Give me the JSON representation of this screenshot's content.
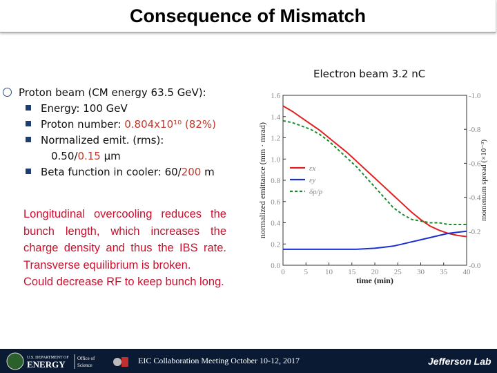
{
  "slide": {
    "title": "Consequence of Mismatch",
    "main_bullet": "Proton beam  (CM energy 63.5 GeV):",
    "subs": [
      {
        "pre": "Energy: 100 GeV",
        "hl": "",
        "post": ""
      },
      {
        "pre": "Proton number: ",
        "hl": "0.804x10¹⁰  (82%)",
        "post": ""
      },
      {
        "pre": "Normalized emit. (rms):",
        "hl": "",
        "post": ""
      },
      {
        "pre": "Beta function in cooler: 60/",
        "hl": "200",
        "post": " m"
      }
    ],
    "emit_cont_pre": "0.50/",
    "emit_cont_hl": "0.15",
    "emit_cont_post": " μm",
    "paragraph_1": "Longitudinal overcooling reduces the bunch length, which increases the charge density and thus the IBS rate. Transverse equilibrium is broken.",
    "paragraph_2": "Could decrease RF to keep bunch long.",
    "beam_label": "Electron beam  3.2 nC"
  },
  "footer": {
    "meeting": "EIC Collaboration Meeting October 10-12, 2017",
    "energy_small": "U.S. DEPARTMENT OF",
    "energy_word": "ENERGY",
    "office": "Office of",
    "science": "Science",
    "jlab": "Jefferson Lab"
  },
  "colors": {
    "accent_red": "#c8102e",
    "navy": "#0b1a33",
    "ex": "#e02020",
    "ey": "#1a2fd0",
    "dp": "#1a8a2a"
  },
  "chart_data": {
    "type": "line",
    "xlabel": "time (min)",
    "ylabel": "normalized emittance (mm · mrad)",
    "y2label": "momentum spread (×10⁻³)",
    "xlim": [
      0,
      40
    ],
    "ylim": [
      0,
      1.6
    ],
    "y2lim": [
      0,
      1.0
    ],
    "xticks": [
      "0",
      "5",
      "10",
      "15",
      "20",
      "25",
      "30",
      "35",
      "40"
    ],
    "yticks": [
      "0.0",
      "0.2",
      "0.4",
      "0.6",
      "0.8",
      "1.0",
      "1.2",
      "1.4",
      "1.6"
    ],
    "y2ticks": [
      "0.0",
      "0.2",
      "0.4",
      "0.6",
      "0.8",
      "1.0"
    ],
    "legend": [
      "εx",
      "εy",
      "δp/p"
    ],
    "legend_position": "center-left",
    "series": [
      {
        "name": "εx",
        "axis": "left",
        "x": [
          0,
          2,
          4,
          6,
          8,
          10,
          12,
          14,
          16,
          18,
          20,
          22,
          24,
          26,
          28,
          30,
          32,
          34,
          36,
          38,
          40
        ],
        "y": [
          1.5,
          1.45,
          1.39,
          1.33,
          1.27,
          1.2,
          1.13,
          1.06,
          0.98,
          0.9,
          0.82,
          0.74,
          0.66,
          0.58,
          0.5,
          0.43,
          0.37,
          0.33,
          0.3,
          0.28,
          0.27
        ]
      },
      {
        "name": "εy",
        "axis": "left",
        "x": [
          0,
          4,
          8,
          12,
          16,
          20,
          22,
          24,
          26,
          28,
          30,
          32,
          34,
          36,
          38,
          40
        ],
        "y": [
          0.15,
          0.15,
          0.15,
          0.15,
          0.15,
          0.16,
          0.17,
          0.18,
          0.2,
          0.22,
          0.24,
          0.26,
          0.28,
          0.3,
          0.31,
          0.32
        ]
      },
      {
        "name": "δp/p",
        "axis": "right",
        "x": [
          0,
          2,
          4,
          6,
          8,
          10,
          12,
          14,
          16,
          18,
          20,
          22,
          24,
          26,
          28,
          30,
          32,
          34,
          36,
          38,
          40
        ],
        "y": [
          0.85,
          0.84,
          0.82,
          0.8,
          0.77,
          0.73,
          0.68,
          0.63,
          0.58,
          0.52,
          0.46,
          0.4,
          0.34,
          0.3,
          0.27,
          0.26,
          0.25,
          0.25,
          0.24,
          0.24,
          0.24
        ]
      }
    ]
  }
}
